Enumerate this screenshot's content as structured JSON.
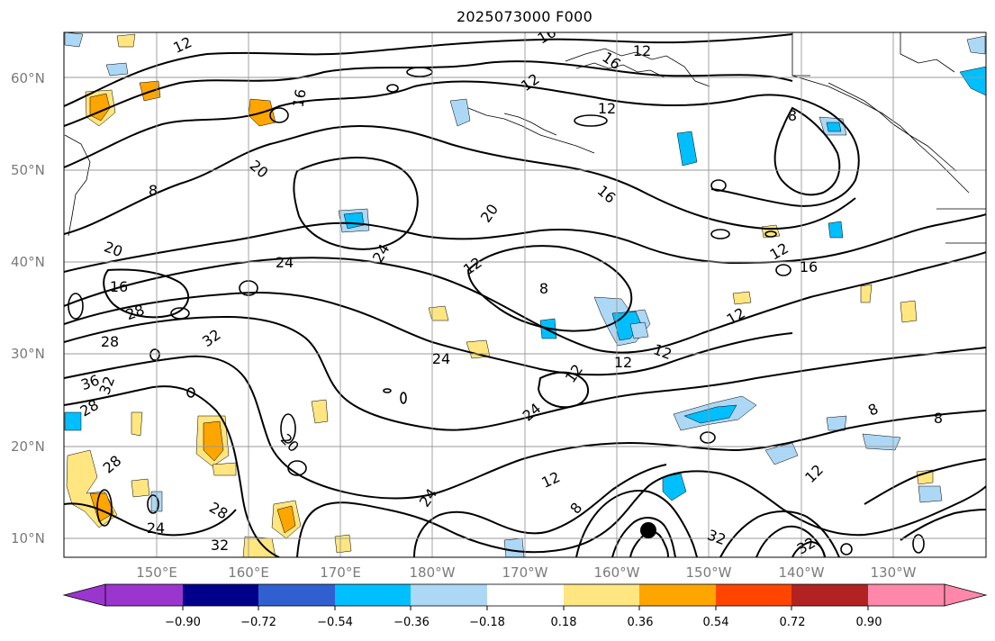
{
  "title": "2025073000 F000",
  "lat_labels": [
    "60°N",
    "50°N",
    "40°N",
    "30°N",
    "20°N",
    "10°N"
  ],
  "lon_labels": [
    "150°E",
    "160°E",
    "170°E",
    "180°W",
    "170°W",
    "160°W",
    "150°W",
    "140°W",
    "130°W"
  ],
  "contour_labels": [
    "12",
    "16",
    "12",
    "12",
    "8",
    "12",
    "16",
    "20",
    "16",
    "8",
    "24",
    "20",
    "16",
    "12",
    "12",
    "16",
    "24",
    "20",
    "16",
    "28",
    "28",
    "32",
    "36",
    "32",
    "28",
    "24",
    "12",
    "12",
    "12",
    "8",
    "24",
    "20",
    "12",
    "8",
    "8",
    "12",
    "32",
    "24",
    "32",
    "28",
    "24",
    "32",
    "28",
    "8",
    "12"
  ],
  "colorbar": {
    "ticks": [
      "−0.90",
      "−0.72",
      "−0.54",
      "−0.36",
      "−0.18",
      "0.18",
      "0.36",
      "0.54",
      "0.72",
      "0.90"
    ],
    "colors": [
      "#9a36cd",
      "#00008b",
      "#3060cf",
      "#00bfff",
      "#add8f5",
      "#ffffff",
      "#ffe680",
      "#ffa500",
      "#ff4500",
      "#b22222",
      "#ff88aa"
    ]
  },
  "marker": "black-dot"
}
